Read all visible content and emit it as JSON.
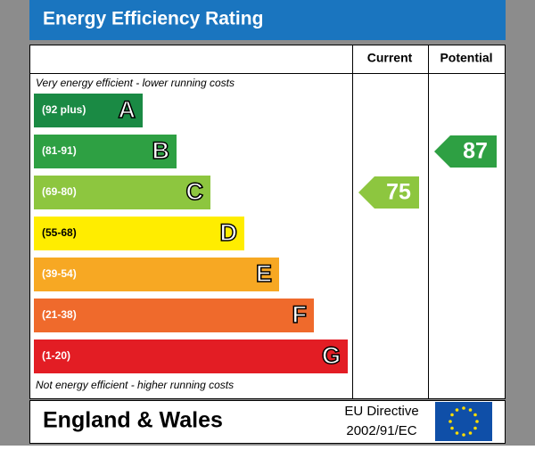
{
  "title": "Energy Efficiency Rating",
  "columns": [
    "Current",
    "Potential"
  ],
  "top_note": "Very energy efficient - lower running costs",
  "bottom_note": "Not energy efficient - higher running costs",
  "bands": [
    {
      "range": "(92 plus)",
      "letter": "A",
      "color": "#1a8a44"
    },
    {
      "range": "(81-91)",
      "letter": "B",
      "color": "#2ea043"
    },
    {
      "range": "(69-80)",
      "letter": "C",
      "color": "#8dc63f"
    },
    {
      "range": "(55-68)",
      "letter": "D",
      "color": "#ffed00"
    },
    {
      "range": "(39-54)",
      "letter": "E",
      "color": "#f7a823"
    },
    {
      "range": "(21-38)",
      "letter": "F",
      "color": "#ef6a2c"
    },
    {
      "range": "(1-20)",
      "letter": "G",
      "color": "#e31d24"
    }
  ],
  "current": {
    "value": 75,
    "band": "C"
  },
  "potential": {
    "value": 87,
    "band": "B"
  },
  "footer": {
    "region": "England & Wales",
    "directive_line1": "EU Directive",
    "directive_line2": "2002/91/EC"
  }
}
